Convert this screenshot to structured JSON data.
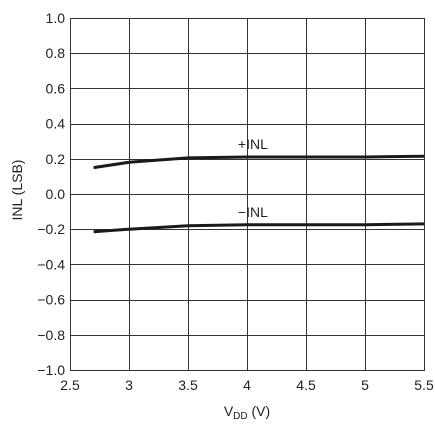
{
  "chart_data": {
    "type": "line",
    "title": "",
    "xlabel": {
      "main": "V",
      "subscript": "DD",
      "unit": " (V)"
    },
    "ylabel": "INL (LSB)",
    "xlim": [
      2.5,
      5.5
    ],
    "ylim": [
      -1.0,
      1.0
    ],
    "grid": true,
    "legend": "none",
    "x_ticks": [
      2.5,
      3,
      3.5,
      4,
      4.5,
      5,
      5.5
    ],
    "x_tick_labels": [
      "2.5",
      "3",
      "3.5",
      "4",
      "4.5",
      "5",
      "5.5"
    ],
    "y_ticks": [
      1.0,
      0.8,
      0.6,
      0.4,
      0.2,
      0.0,
      -0.2,
      -0.4,
      -0.6,
      -0.8,
      -1.0
    ],
    "y_tick_labels": [
      "1.0",
      "0.8",
      "0.6",
      "0.4",
      "0.2",
      "0.0",
      "−0.2",
      "−0.4",
      "−0.6",
      "−0.8",
      "−1.0"
    ],
    "series": [
      {
        "name": "+INL",
        "x": [
          2.7,
          3.0,
          3.5,
          4.0,
          4.5,
          5.0,
          5.5
        ],
        "y": [
          0.15,
          0.18,
          0.205,
          0.21,
          0.21,
          0.21,
          0.215
        ]
      },
      {
        "name": "−INL",
        "x": [
          2.7,
          3.0,
          3.5,
          4.0,
          4.5,
          5.0,
          5.5
        ],
        "y": [
          -0.215,
          -0.2,
          -0.18,
          -0.175,
          -0.175,
          -0.175,
          -0.17
        ]
      }
    ],
    "annotations": [
      {
        "text": "+INL",
        "series": 0,
        "x": 4.05,
        "y": 0.255
      },
      {
        "text": "−INL",
        "series": 1,
        "x": 4.05,
        "y": -0.13
      }
    ]
  }
}
